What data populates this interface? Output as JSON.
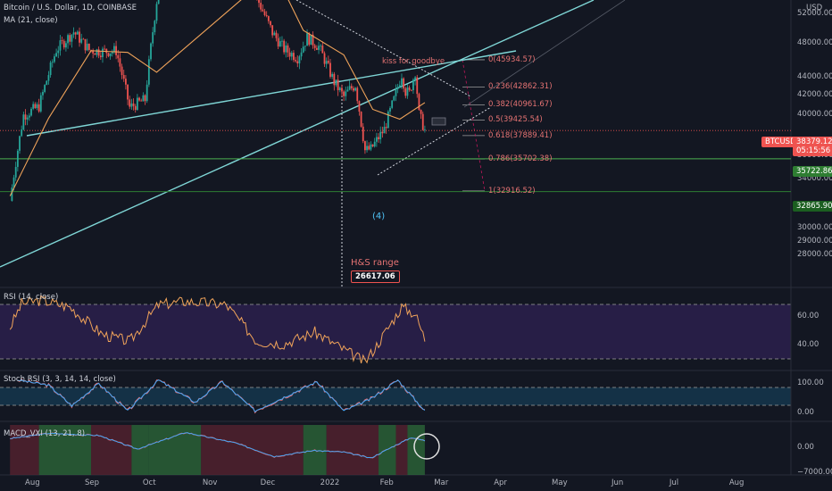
{
  "header": {
    "symbol_line": "Bitcoin / U.S. Dollar, 1D, COINBASE",
    "ma_line": "MA (21, close)",
    "currency": "USD"
  },
  "price_tags": {
    "btc_label": "BTCUSD",
    "btc_price": "38379.12",
    "countdown": "05:15:56",
    "green_level": "35722.86",
    "low_level": "32865.90",
    "top_label": "52000.00"
  },
  "annotations": {
    "kiss": "kiss for goodbye",
    "wave": "(4)",
    "hs_range": "H&S range",
    "hs_target": "26617.06"
  },
  "rsi_panel": {
    "title": "RSI (14, close)",
    "ticks": [
      "60.00",
      "40.00"
    ]
  },
  "stoch_panel": {
    "title": "Stoch RSI (3, 3, 14, 14, close)",
    "ticks": [
      "100.00",
      "0.00"
    ]
  },
  "macd_panel": {
    "title": "MACD_VXI (13, 21, 8)",
    "ticks": [
      "0.00",
      "−7000.00"
    ]
  },
  "colors": {
    "background": "#131722",
    "up": "#26a69a",
    "down": "#ef5350",
    "ma": "#f0a35a",
    "trendline": "#7fd6d6",
    "fib": "#c2185b",
    "rsi_fill": "#2a1f4a",
    "green_line": "#4caf50"
  },
  "chart_data": [
    {
      "type": "candlestick",
      "title": "Bitcoin / U.S. Dollar, 1D, COINBASE",
      "x_ticks": [
        "Aug",
        "Sep",
        "Oct",
        "Nov",
        "Dec",
        "2022",
        "Feb",
        "Mar",
        "Apr",
        "May",
        "Jun",
        "Jul",
        "Aug"
      ],
      "y_ticks": [
        "48000.00",
        "44000.00",
        "42000.00",
        "40000.00",
        "36000.00",
        "34000.00",
        "30000.00",
        "29000.00",
        "28000.00"
      ],
      "y_scale": "log",
      "ylim": [
        26000,
        52500
      ],
      "close_series": [
        {
          "date": "2021-07-21",
          "close": 32100
        },
        {
          "date": "2021-07-28",
          "close": 39900
        },
        {
          "date": "2021-08-05",
          "close": 40800
        },
        {
          "date": "2021-08-14",
          "close": 47100
        },
        {
          "date": "2021-08-23",
          "close": 49300
        },
        {
          "date": "2021-08-31",
          "close": 47100
        },
        {
          "date": "2021-09-07",
          "close": 46900
        },
        {
          "date": "2021-09-14",
          "close": 47000
        },
        {
          "date": "2021-09-21",
          "close": 40700
        },
        {
          "date": "2021-09-29",
          "close": 41500
        },
        {
          "date": "2021-10-06",
          "close": 55300
        },
        {
          "date": "2021-10-20",
          "close": 65900
        },
        {
          "date": "2021-11-10",
          "close": 64900
        },
        {
          "date": "2021-11-16",
          "close": 60100
        },
        {
          "date": "2021-11-26",
          "close": 53700
        },
        {
          "date": "2021-12-04",
          "close": 49200
        },
        {
          "date": "2021-12-10",
          "close": 47200
        },
        {
          "date": "2021-12-17",
          "close": 46200
        },
        {
          "date": "2021-12-22",
          "close": 48600
        },
        {
          "date": "2021-12-28",
          "close": 47500
        },
        {
          "date": "2022-01-05",
          "close": 43400
        },
        {
          "date": "2022-01-10",
          "close": 41800
        },
        {
          "date": "2022-01-13",
          "close": 42600
        },
        {
          "date": "2022-01-16",
          "close": 43100
        },
        {
          "date": "2022-01-21",
          "close": 36500
        },
        {
          "date": "2022-01-24",
          "close": 36600
        },
        {
          "date": "2022-01-28",
          "close": 37700
        },
        {
          "date": "2022-01-31",
          "close": 38500
        },
        {
          "date": "2022-02-05",
          "close": 41500
        },
        {
          "date": "2022-02-09",
          "close": 44300
        },
        {
          "date": "2022-02-11",
          "close": 42400
        },
        {
          "date": "2022-02-13",
          "close": 42200
        },
        {
          "date": "2022-02-16",
          "close": 44600
        },
        {
          "date": "2022-02-18",
          "close": 40000
        },
        {
          "date": "2022-02-21",
          "close": 38400
        }
      ],
      "ma21_series": [
        {
          "date": "2021-07-21",
          "value": 32500
        },
        {
          "date": "2021-08-10",
          "value": 39600
        },
        {
          "date": "2021-09-01",
          "value": 47000
        },
        {
          "date": "2021-09-20",
          "value": 46800
        },
        {
          "date": "2021-10-05",
          "value": 44500
        },
        {
          "date": "2021-12-05",
          "value": 57500
        },
        {
          "date": "2021-12-20",
          "value": 49500
        },
        {
          "date": "2022-01-10",
          "value": 46500
        },
        {
          "date": "2022-01-25",
          "value": 40500
        },
        {
          "date": "2022-02-08",
          "value": 39500
        },
        {
          "date": "2022-02-21",
          "value": 41200
        }
      ],
      "fibonacci": [
        {
          "ratio": "0",
          "price": 45934.57,
          "label": "0(45934.57)"
        },
        {
          "ratio": "0.236",
          "price": 42862.31,
          "label": "0.236(42862.31)"
        },
        {
          "ratio": "0.382",
          "price": 40961.67,
          "label": "0.382(40961.67)"
        },
        {
          "ratio": "0.5",
          "price": 39425.54,
          "label": "0.5(39425.54)"
        },
        {
          "ratio": "0.618",
          "price": 37889.41,
          "label": "0.618(37889.41)"
        },
        {
          "ratio": "0.786",
          "price": 35702.38,
          "label": "0.786(35702.38)"
        },
        {
          "ratio": "1",
          "price": 32916.52,
          "label": "1(32916.52)"
        }
      ],
      "levels": {
        "current": 38379.12,
        "support_green": 35722.86,
        "low": 32865.9,
        "hs_target": 26617.06
      }
    },
    {
      "type": "line",
      "title": "RSI (14, close)",
      "ylim": [
        15,
        85
      ],
      "bands": [
        70,
        30
      ],
      "series": [
        {
          "values": [
            {
              "date": "2021-07-21",
              "value": 50
            },
            {
              "date": "2021-07-27",
              "value": 71
            },
            {
              "date": "2021-08-06",
              "value": 74
            },
            {
              "date": "2021-08-21",
              "value": 68
            },
            {
              "date": "2021-09-07",
              "value": 44
            },
            {
              "date": "2021-09-21",
              "value": 38
            },
            {
              "date": "2021-10-06",
              "value": 70
            },
            {
              "date": "2021-10-20",
              "value": 73
            },
            {
              "date": "2021-11-10",
              "value": 70
            },
            {
              "date": "2021-11-26",
              "value": 38
            },
            {
              "date": "2021-12-10",
              "value": 36
            },
            {
              "date": "2021-12-26",
              "value": 46
            },
            {
              "date": "2022-01-10",
              "value": 31
            },
            {
              "date": "2022-01-21",
              "value": 20
            },
            {
              "date": "2022-01-28",
              "value": 37
            },
            {
              "date": "2022-02-09",
              "value": 68
            },
            {
              "date": "2022-02-16",
              "value": 62
            },
            {
              "date": "2022-02-21",
              "value": 40
            }
          ]
        }
      ]
    },
    {
      "type": "line",
      "title": "Stoch RSI (3, 3, 14, 14, close)",
      "ylim": [
        -15,
        115
      ],
      "bands": [
        80,
        20
      ],
      "series": [
        {
          "values": [
            {
              "date": "2021-07-25",
              "value": 95
            },
            {
              "date": "2021-08-10",
              "value": 80
            },
            {
              "date": "2021-08-22",
              "value": 20
            },
            {
              "date": "2021-09-05",
              "value": 85
            },
            {
              "date": "2021-09-20",
              "value": 5
            },
            {
              "date": "2021-10-06",
              "value": 95
            },
            {
              "date": "2021-10-25",
              "value": 30
            },
            {
              "date": "2021-11-08",
              "value": 90
            },
            {
              "date": "2021-11-25",
              "value": 5
            },
            {
              "date": "2021-12-12",
              "value": 50
            },
            {
              "date": "2021-12-27",
              "value": 90
            },
            {
              "date": "2022-01-10",
              "value": 5
            },
            {
              "date": "2022-01-24",
              "value": 40
            },
            {
              "date": "2022-02-07",
              "value": 95
            },
            {
              "date": "2022-02-21",
              "value": 5
            }
          ]
        }
      ]
    },
    {
      "type": "line",
      "title": "MACD_VXI (13, 21, 8)",
      "ylim": [
        -10000,
        6000
      ],
      "series": [
        {
          "values": [
            {
              "date": "2021-07-21",
              "value": 1500
            },
            {
              "date": "2021-08-10",
              "value": 3200
            },
            {
              "date": "2021-09-05",
              "value": 2500
            },
            {
              "date": "2021-09-25",
              "value": -2000
            },
            {
              "date": "2021-10-20",
              "value": 3500
            },
            {
              "date": "2021-11-15",
              "value": 0
            },
            {
              "date": "2021-12-05",
              "value": -4500
            },
            {
              "date": "2021-12-25",
              "value": -2500
            },
            {
              "date": "2022-01-10",
              "value": -3000
            },
            {
              "date": "2022-01-24",
              "value": -5000
            },
            {
              "date": "2022-02-05",
              "value": -1000
            },
            {
              "date": "2022-02-14",
              "value": 1800
            },
            {
              "date": "2022-02-21",
              "value": 800
            }
          ]
        }
      ]
    }
  ]
}
